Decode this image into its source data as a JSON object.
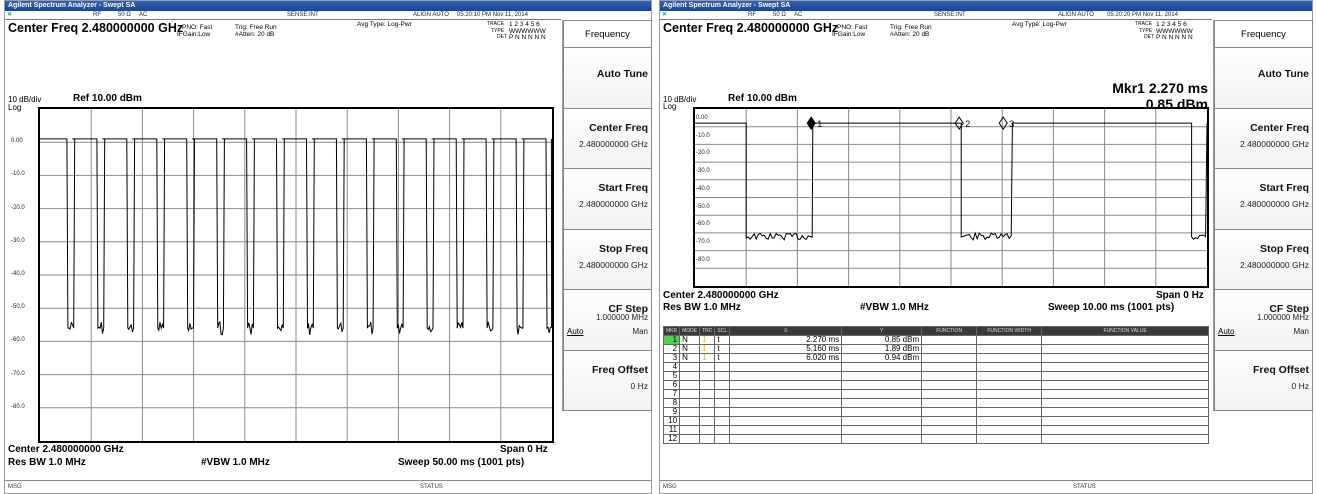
{
  "left": {
    "title": "Agilent Spectrum Analyzer - Swept SA",
    "status_top": {
      "rf": "RF",
      "ohm": "50 Ω",
      "ac": "AC",
      "sense": "SENSE:INT",
      "align": "ALIGN AUTO",
      "time": "05:20:10 PM Nov 11, 2014"
    },
    "center_freq_title": "Center Freq 2.480000000 GHz",
    "pno": "PNO: Fast",
    "ifgain": "IFGain:Low",
    "trig": "Trig: Free Run",
    "atten": "#Atten: 20 dB",
    "avg_type": "Avg Type: Log-Pwr",
    "trace_label": "TRACE",
    "trace_nums": "1 2 3 4 5 6",
    "type_label": "TYPE",
    "type_vals": "WWWWWW",
    "det_label": "DET",
    "det_vals": "P N N N N N",
    "scale": "10 dB/div",
    "ref": "Ref 10.00 dBm",
    "log": "Log",
    "y_ticks": [
      "0.00",
      "-10.0",
      "-20.0",
      "-30.0",
      "-40.0",
      "-50.0",
      "-60.0",
      "-70.0",
      "-80.0"
    ],
    "center_bottom": "Center 2.480000000 GHz",
    "res_bw": "Res BW 1.0 MHz",
    "vbw": "#VBW 1.0 MHz",
    "span": "Span 0 Hz",
    "sweep": "Sweep  50.00 ms (1001 pts)",
    "msg": "MSG",
    "status": "STATUS"
  },
  "right": {
    "title": "Agilent Spectrum Analyzer - Swept SA",
    "status_top": {
      "rf": "RF",
      "ohm": "50 Ω",
      "ac": "AC",
      "sense": "SENSE:INT",
      "align": "ALIGN AUTO",
      "time": "05:20:20 PM Nov 11, 2014"
    },
    "center_freq_title": "Center Freq 2.480000000 GHz",
    "pno": "PNO: Fast",
    "ifgain": "IFGain:Low",
    "trig": "Trig: Free Run",
    "atten": "#Atten: 20 dB",
    "avg_type": "Avg Type: Log-Pwr",
    "trace_label": "TRACE",
    "trace_nums": "1 2 3 4 5 6",
    "type_label": "TYPE",
    "type_vals": "WWWWWW",
    "det_label": "DET",
    "det_vals": "P N N N N N",
    "mkr_line1": "Mkr1 2.270 ms",
    "mkr_line2": "0.85 dBm",
    "scale": "10 dB/div",
    "ref": "Ref 10.00 dBm",
    "log": "Log",
    "y_ticks": [
      "0.00",
      "-10.0",
      "-20.0",
      "-30.0",
      "-40.0",
      "-50.0",
      "-60.0",
      "-70.0",
      "-80.0"
    ],
    "marker_labels": [
      "1",
      "2",
      "3"
    ],
    "center_bottom": "Center 2.480000000 GHz",
    "res_bw": "Res BW 1.0 MHz",
    "vbw": "#VBW 1.0 MHz",
    "span": "Span 0 Hz",
    "sweep": "Sweep  10.00 ms (1001 pts)",
    "table_headers": [
      "MKR",
      "MODE",
      "TRC",
      "SCL",
      "X",
      "Y",
      "FUNCTION",
      "FUNCTION WIDTH",
      "FUNCTION VALUE"
    ],
    "markers": [
      {
        "n": "1",
        "mode": "N",
        "trc": "1",
        "scl": "t",
        "x": "2.270 ms",
        "y": "0.85 dBm"
      },
      {
        "n": "2",
        "mode": "N",
        "trc": "1",
        "scl": "t",
        "x": "5.160 ms",
        "y": "1.89 dBm"
      },
      {
        "n": "3",
        "mode": "N",
        "trc": "1",
        "scl": "t",
        "x": "6.020 ms",
        "y": "0.94 dBm"
      },
      {
        "n": "4"
      },
      {
        "n": "5"
      },
      {
        "n": "6"
      },
      {
        "n": "7"
      },
      {
        "n": "8"
      },
      {
        "n": "9"
      },
      {
        "n": "10"
      },
      {
        "n": "11"
      },
      {
        "n": "12"
      }
    ],
    "msg": "MSG",
    "status": "STATUS"
  },
  "softkeys": {
    "header": "Frequency",
    "auto_tune": "Auto Tune",
    "center_freq": "Center Freq",
    "center_freq_val": "2.480000000 GHz",
    "start_freq": "Start Freq",
    "start_freq_val": "2.480000000 GHz",
    "stop_freq": "Stop Freq",
    "stop_freq_val": "2.480000000 GHz",
    "cf_step": "CF Step",
    "cf_step_val": "1.000000 MHz",
    "cf_auto": "Auto",
    "cf_man": "Man",
    "freq_offset": "Freq Offset",
    "freq_offset_val": "0 Hz"
  },
  "colors": {
    "titlebar": "#2f63b8",
    "marker_sel": "#4bd34b",
    "trace": "#000000"
  }
}
